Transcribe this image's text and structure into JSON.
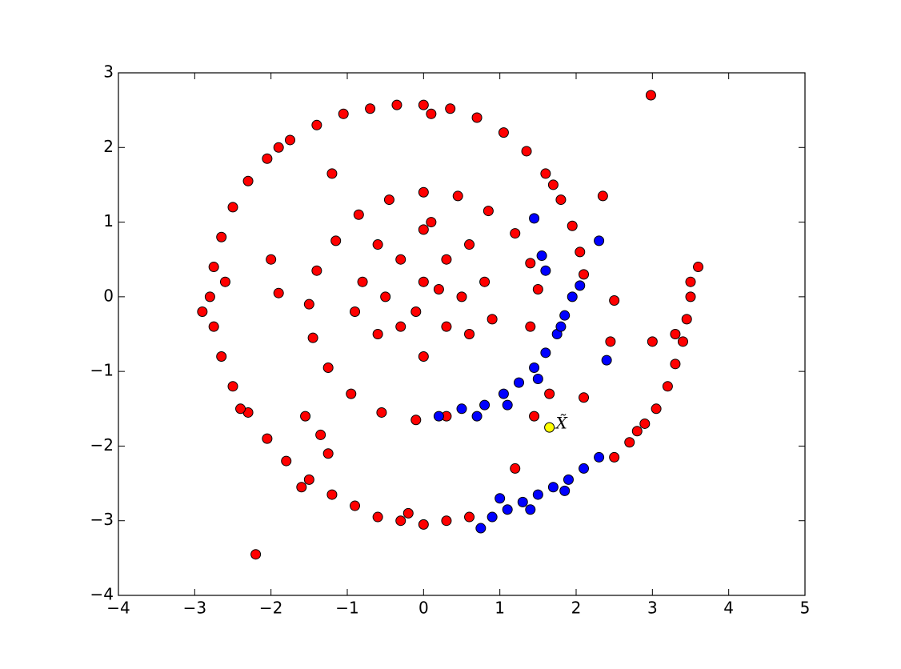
{
  "chart_data": {
    "type": "scatter",
    "xlim": [
      -4,
      5
    ],
    "ylim": [
      -4,
      3
    ],
    "xticks": [
      {
        "value": -4,
        "label": "−4"
      },
      {
        "value": -3,
        "label": "−3"
      },
      {
        "value": -2,
        "label": "−2"
      },
      {
        "value": -1,
        "label": "−1"
      },
      0,
      1,
      2,
      3,
      4,
      5
    ],
    "yticks": [
      {
        "value": -4,
        "label": "−4"
      },
      {
        "value": -3,
        "label": "−3"
      },
      {
        "value": -2,
        "label": "−2"
      },
      {
        "value": -1,
        "label": "−1"
      },
      0,
      1,
      2,
      3
    ],
    "series": [
      {
        "color": "#ff0000",
        "x": [
          3.6,
          3.5,
          3.5,
          3.45,
          3.4,
          3.3,
          3.2,
          3.05,
          2.9,
          2.7,
          2.5,
          0.6,
          0.3,
          0,
          -0.3,
          -0.6,
          -0.9,
          -1.2,
          -1.5,
          -1.8,
          -2.05,
          -2.3,
          -2.5,
          -2.65,
          -2.75,
          -2.8,
          -2.75,
          -2.65,
          -2.5,
          -2.3,
          -2.05,
          -1.75,
          -1.4,
          -1.05,
          -0.7,
          -0.35,
          0,
          0.35,
          0.7,
          1.05,
          1.35,
          1.6,
          1.8,
          1.95,
          2.05,
          2.1,
          -2.6,
          -2.9,
          -2.4,
          -1.9,
          0.1,
          1.7,
          -0.2,
          -1.6,
          3.3,
          2.8,
          2.98,
          -2.2,
          -2.0,
          -1.9,
          -1.2,
          -1.55,
          -1.35,
          -1.25,
          2.35,
          1.2,
          2.1,
          2.45,
          2.5,
          1.45,
          1.65,
          3.0,
          1.4,
          1.2,
          0.85,
          0.45,
          0,
          -0.45,
          -0.85,
          -1.15,
          -1.4,
          -1.5,
          -1.45,
          -1.25,
          -0.95,
          -0.55,
          -0.1,
          0.3,
          1.5,
          1.4,
          0,
          0.3,
          -0.3,
          0.5,
          -0.5,
          0.3,
          -0.3,
          0,
          0.6,
          -0.6,
          0.8,
          -0.8,
          0,
          0.6,
          -0.6,
          0.2,
          -0.1,
          0.9,
          -0.9,
          0.1
        ],
        "values": [
          0.4,
          0.2,
          0,
          -0.3,
          -0.6,
          -0.9,
          -1.2,
          -1.5,
          -1.7,
          -1.95,
          -2.15,
          -2.95,
          -3.0,
          -3.05,
          -3.0,
          -2.95,
          -2.8,
          -2.65,
          -2.45,
          -2.2,
          -1.9,
          -1.55,
          -1.2,
          -0.8,
          -0.4,
          0,
          0.4,
          0.8,
          1.2,
          1.55,
          1.85,
          2.1,
          2.3,
          2.45,
          2.52,
          2.57,
          2.57,
          2.52,
          2.4,
          2.2,
          1.95,
          1.65,
          1.3,
          0.95,
          0.6,
          0.3,
          0.2,
          -0.2,
          -1.5,
          2.0,
          2.45,
          1.5,
          -2.9,
          -2.55,
          -0.5,
          -1.8,
          2.7,
          -3.45,
          0.5,
          0.05,
          1.65,
          -1.6,
          -1.85,
          -2.1,
          1.35,
          -2.3,
          -1.35,
          -0.6,
          -0.05,
          -1.6,
          -1.3,
          -0.6,
          0.45,
          0.85,
          1.15,
          1.35,
          1.4,
          1.3,
          1.1,
          0.75,
          0.35,
          -0.1,
          -0.55,
          -0.95,
          -1.3,
          -1.55,
          -1.65,
          -1.6,
          0.1,
          -0.4,
          0.2,
          0.5,
          0.5,
          0,
          0,
          -0.4,
          -0.4,
          -0.8,
          0.7,
          0.7,
          0.2,
          0.2,
          0.9,
          -0.5,
          -0.5,
          0.1,
          -0.2,
          -0.3,
          -0.2,
          1.0
        ]
      },
      {
        "color": "#0000ff",
        "x": [
          0.2,
          0.5,
          0.8,
          1.05,
          1.25,
          1.45,
          1.6,
          1.75,
          1.85,
          1.95,
          2.05,
          0.7,
          1.1,
          1.5,
          1.8,
          1.45,
          1.55,
          1.6,
          2.4,
          2.3,
          0.75,
          0.9,
          1.1,
          1.3,
          1.5,
          1.7,
          1.9,
          2.1,
          2.3,
          1.0,
          1.4,
          1.85
        ],
        "values": [
          -1.6,
          -1.5,
          -1.45,
          -1.3,
          -1.15,
          -0.95,
          -0.75,
          -0.5,
          -0.25,
          0,
          0.15,
          -1.6,
          -1.45,
          -1.1,
          -0.4,
          1.05,
          0.55,
          0.35,
          -0.85,
          0.75,
          -3.1,
          -2.95,
          -2.85,
          -2.75,
          -2.65,
          -2.55,
          -2.45,
          -2.3,
          -2.15,
          -2.7,
          -2.85,
          -2.6
        ]
      },
      {
        "color": "#ffff00",
        "x": [
          1.65
        ],
        "values": [
          -1.75
        ]
      }
    ],
    "annotations": [
      {
        "text": "X̃",
        "x": 1.65,
        "y": -1.75
      }
    ]
  }
}
